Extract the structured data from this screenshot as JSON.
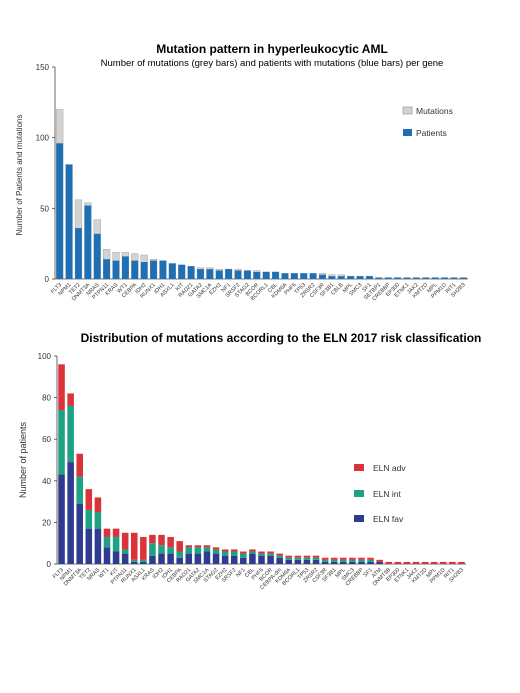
{
  "chart_data": [
    {
      "type": "bar",
      "title": "Mutation pattern in hyperleukocytic AML",
      "subtitle": "Number of mutations (grey bars) and patients with mutations (blue bars) per gene",
      "ylabel": "Number of Patients and mutations",
      "xlabel": "",
      "ylim": [
        0,
        150
      ],
      "yticks": [
        0,
        50,
        100,
        150
      ],
      "grid": false,
      "legend_position": "right",
      "categories": [
        "FLT3",
        "NPM1",
        "TET2",
        "DNMT3A",
        "NRAS",
        "PTPN11",
        "KRAS",
        "WT1",
        "CEBPA",
        "IDH2",
        "RUNX1",
        "IDH1",
        "ASXL1",
        "KIT",
        "RAD21",
        "GATA2",
        "SMC1A",
        "EZH2",
        "NF1",
        "SRSF2",
        "STAG2",
        "BCOR",
        "BCORL1",
        "CBL",
        "KDM6A",
        "PHF6",
        "TP53",
        "ZRSR2",
        "CSF3R",
        "SF3B1",
        "CBLB",
        "MPL",
        "SMC3",
        "SF1",
        "SETBP1",
        "CREBBP",
        "EP300",
        "ETNK1",
        "JAK2",
        "KMT2D",
        "MPL",
        "PPM1D",
        "RIT1",
        "SH2B3"
      ],
      "series": [
        {
          "name": "Mutations",
          "color": "#d3d3d3",
          "values": [
            120,
            81,
            56,
            54,
            42,
            21,
            19,
            19,
            18,
            17,
            14,
            13,
            11,
            10,
            9,
            8,
            8,
            7,
            7,
            7,
            6,
            6,
            5,
            5,
            4,
            4,
            4,
            4,
            4,
            3,
            3,
            2,
            2,
            2,
            1,
            1,
            1,
            1,
            1,
            1,
            1,
            1,
            1,
            1
          ]
        },
        {
          "name": "Patients",
          "color": "#1f6fb5",
          "values": [
            96,
            81,
            36,
            52,
            32,
            14,
            13,
            16,
            13,
            12,
            13,
            13,
            11,
            10,
            9,
            7,
            7,
            6,
            7,
            6,
            6,
            5,
            5,
            5,
            4,
            4,
            4,
            4,
            3,
            2,
            2,
            2,
            2,
            2,
            1,
            1,
            1,
            1,
            1,
            1,
            1,
            1,
            1,
            1
          ]
        }
      ]
    },
    {
      "type": "bar",
      "stacked": true,
      "title": "Distribution of mutations according to the ELN 2017 risk classification",
      "ylabel": "Number of patients",
      "xlabel": "",
      "ylim": [
        0,
        100
      ],
      "yticks": [
        0,
        20,
        40,
        60,
        80,
        100
      ],
      "grid": false,
      "legend_position": "right",
      "categories": [
        "FLT3",
        "NPM1",
        "DNMT3A",
        "TET2",
        "NRAS",
        "WT1",
        "KIT",
        "PTPN11",
        "RUNX1",
        "ASXL1",
        "KRAS",
        "IDH2",
        "IDH1",
        "CEBPA",
        "RAD21",
        "GATA2",
        "SMC1A",
        "STAG2",
        "EZH2",
        "SRSF2",
        "NF1",
        "CBL",
        "PHF6",
        "BCOR",
        "CEBPA-dm",
        "KDM6A",
        "BCORL1",
        "TP53",
        "ZRSR2",
        "CSF3R",
        "SF3B1",
        "MPL",
        "SMC3",
        "CREBBP",
        "SF1",
        "ATM",
        "DNMT3B",
        "EP300",
        "ETNK1",
        "JAK2",
        "KMT2D",
        "MPL",
        "PPM1D",
        "RIT1",
        "SH2B3"
      ],
      "series": [
        {
          "name": "ELN adv",
          "color": "#d9343a",
          "values": [
            22,
            6,
            11,
            10,
            7,
            4,
            4,
            8,
            13,
            11,
            4,
            5,
            5,
            5,
            1,
            1,
            1,
            1,
            1,
            1,
            1,
            1,
            1,
            1,
            1,
            1,
            1,
            1,
            1,
            1,
            1,
            1,
            1,
            1,
            1,
            1,
            1,
            1,
            1,
            1,
            1,
            1,
            1,
            1,
            1
          ]
        },
        {
          "name": "ELN int",
          "color": "#1fa183",
          "values": [
            31,
            27,
            13,
            9,
            8,
            5,
            7,
            2,
            1,
            1,
            6,
            4,
            3,
            3,
            3,
            3,
            2,
            2,
            2,
            2,
            2,
            1,
            1,
            1,
            1,
            1,
            1,
            1,
            1,
            1,
            1,
            1,
            1,
            1,
            1,
            0,
            0,
            0,
            0,
            0,
            0,
            0,
            0,
            0,
            0
          ]
        },
        {
          "name": "ELN fav",
          "color": "#2f3b8f",
          "values": [
            43,
            49,
            29,
            17,
            17,
            8,
            6,
            5,
            1,
            1,
            4,
            5,
            5,
            3,
            5,
            5,
            6,
            5,
            4,
            4,
            3,
            5,
            4,
            4,
            3,
            2,
            2,
            2,
            2,
            1,
            1,
            1,
            1,
            1,
            1,
            1,
            0,
            0,
            0,
            0,
            0,
            0,
            0,
            0,
            0
          ]
        }
      ]
    }
  ]
}
